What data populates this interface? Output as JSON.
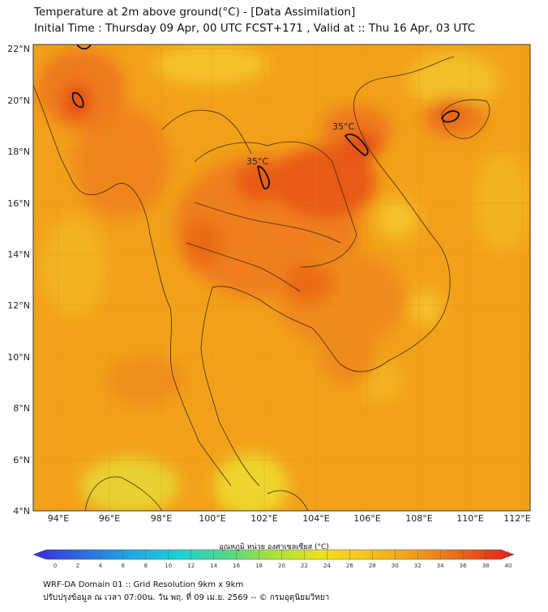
{
  "header": {
    "title_line1": "Temperature at 2m above ground(°C) - [Data Assimilation]",
    "title_line2": "Initial Time : Thursday 09 Apr, 00 UTC FCST+171 , Valid at :: Thu 16 Apr, 03 UTC"
  },
  "map": {
    "lat_labels": [
      "22°N",
      "20°N",
      "18°N",
      "16°N",
      "14°N",
      "12°N",
      "10°N",
      "8°N",
      "6°N",
      "4°N"
    ],
    "lon_labels": [
      "94°E",
      "96°E",
      "98°E",
      "100°E",
      "102°E",
      "104°E",
      "106°E",
      "108°E",
      "110°E",
      "112°E"
    ],
    "contour_labels": [
      "35°C",
      "35°C"
    ],
    "colors": {
      "base": "#f2a21a",
      "warm": "#ef7f1a",
      "hot": "#e85a14",
      "cool": "#f5c22a",
      "cooler": "#e8d230"
    }
  },
  "colorbar": {
    "label": "อุณหภูมิ หน่วย องศาเซลเซียส (°C)",
    "ticks": [
      "0",
      "2",
      "4",
      "6",
      "8",
      "10",
      "12",
      "14",
      "16",
      "18",
      "20",
      "22",
      "24",
      "26",
      "28",
      "30",
      "32",
      "34",
      "36",
      "38",
      "40"
    ],
    "colors": [
      "#3a2bd6",
      "#2f6ae0",
      "#1fa6e6",
      "#19d0d8",
      "#4fd98a",
      "#a8e23a",
      "#f0e21e",
      "#f5b81c",
      "#f08a1a",
      "#e8521a",
      "#e21a1a"
    ]
  },
  "footer": {
    "line1": "WRF-DA Domain 01 :: Grid Resolution 9km x 9km",
    "line2": "ปรับปรุงข้อมูล ณ เวลา 07:00น. วัน พฤ. ที่ 09 เม.ย. 2569 -- © กรมอุตุนิยมวิทยา"
  }
}
